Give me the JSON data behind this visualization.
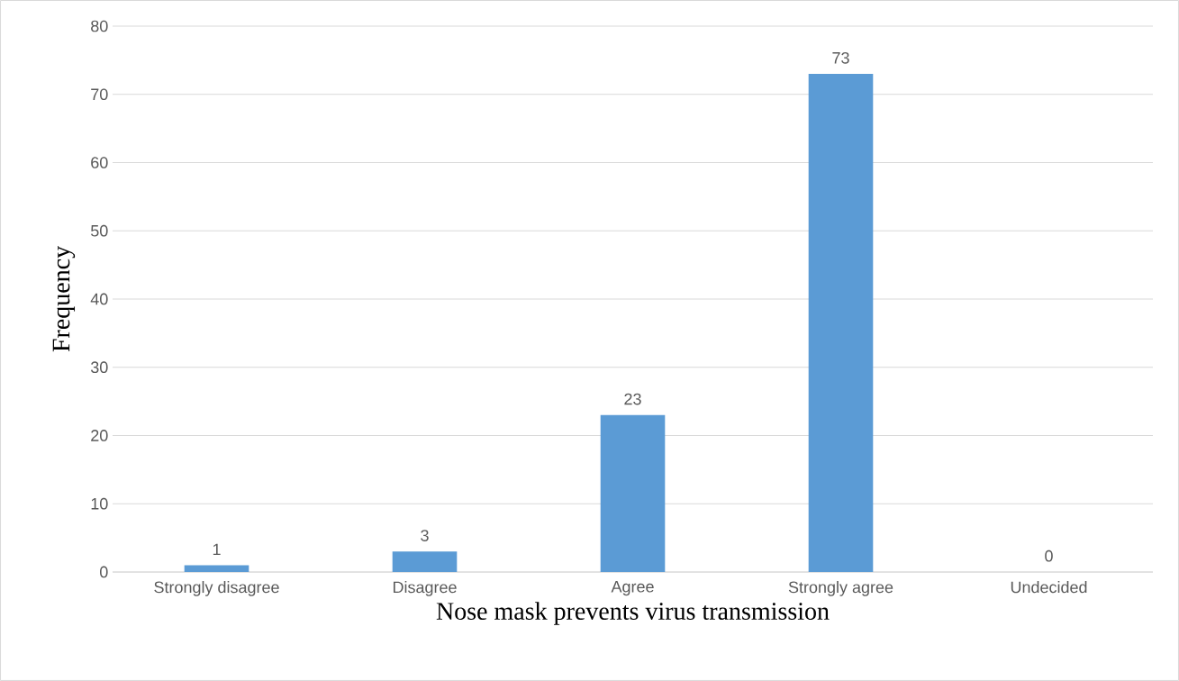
{
  "chart_data": {
    "type": "bar",
    "xlabel": "Nose mask prevents virus transmission",
    "ylabel": "Frequency",
    "categories": [
      "Strongly disagree",
      "Disagree",
      "Agree",
      "Strongly agree",
      "Undecided"
    ],
    "values": [
      1,
      3,
      23,
      73,
      0
    ],
    "color": "#5b9bd5",
    "ylim": [
      0,
      80
    ],
    "yticks": [
      0,
      10,
      20,
      30,
      40,
      50,
      60,
      70,
      80
    ],
    "grid": "y",
    "data_labels": true
  }
}
